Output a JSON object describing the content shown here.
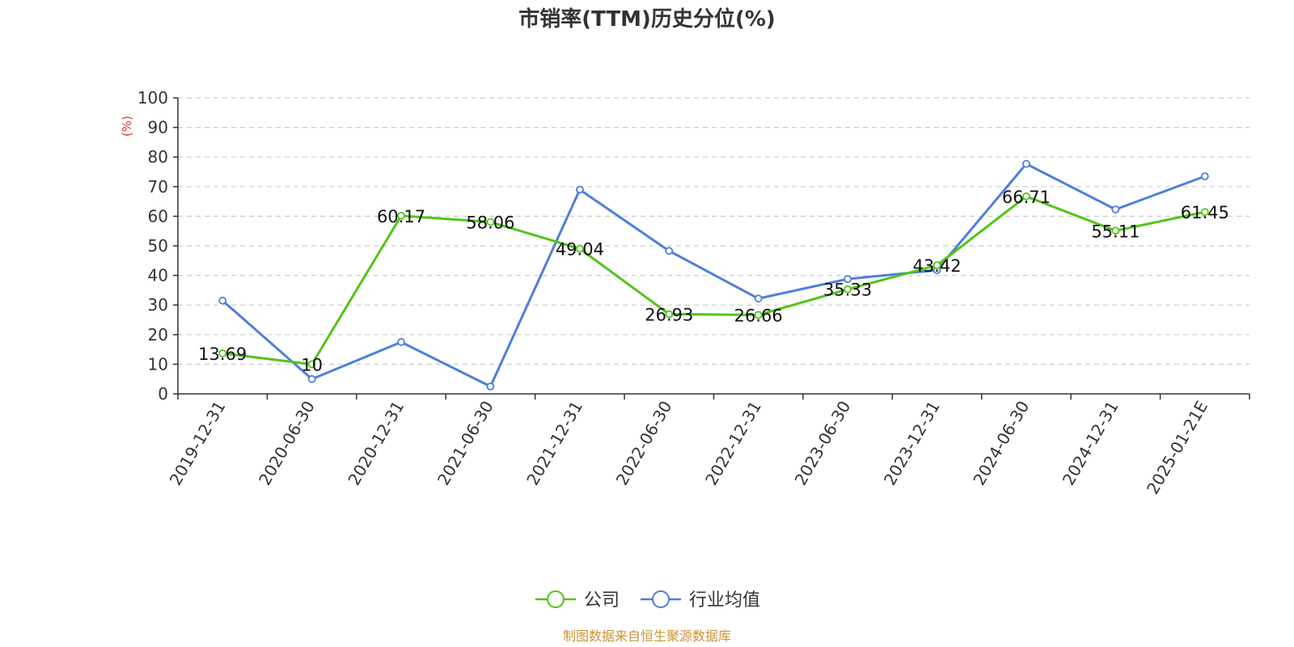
{
  "colors": {
    "company": "#52c41a",
    "industry": "#4e7fdb",
    "unit": "#e8332a",
    "source": "#c8943a",
    "grid": "#cccccc",
    "axis": "#333333"
  },
  "source_note": "制图数据来自恒生聚源数据库",
  "chart_data": {
    "type": "line",
    "title": "市销率(TTM)历史分位(%)",
    "ylabel": "(%)",
    "xlabel": "",
    "ylim": [
      0,
      100
    ],
    "yticks": [
      0,
      10,
      20,
      30,
      40,
      50,
      60,
      70,
      80,
      90,
      100
    ],
    "grid": true,
    "legend_position": "bottom-center",
    "categories": [
      "2019-12-31",
      "2020-06-30",
      "2020-12-31",
      "2021-06-30",
      "2021-12-31",
      "2022-06-30",
      "2022-12-31",
      "2023-06-30",
      "2023-12-31",
      "2024-06-30",
      "2024-12-31",
      "2025-01-21E"
    ],
    "series": [
      {
        "name": "公司",
        "color": "#52c41a",
        "values": [
          13.69,
          10,
          60.17,
          58.06,
          49.04,
          26.93,
          26.66,
          35.33,
          43.42,
          66.71,
          55.11,
          61.45
        ],
        "labels": [
          "13.69",
          "10",
          "60.17",
          "58.06",
          "49.04",
          "26.93",
          "26.66",
          "35.33",
          "43.42",
          "66.71",
          "55.11",
          "61.45"
        ]
      },
      {
        "name": "行业均值",
        "color": "#4e7fdb",
        "values": [
          31.5,
          5,
          17.5,
          2.5,
          69,
          48.3,
          32.2,
          38.8,
          41.8,
          77.7,
          62.3,
          73.5
        ]
      }
    ]
  }
}
